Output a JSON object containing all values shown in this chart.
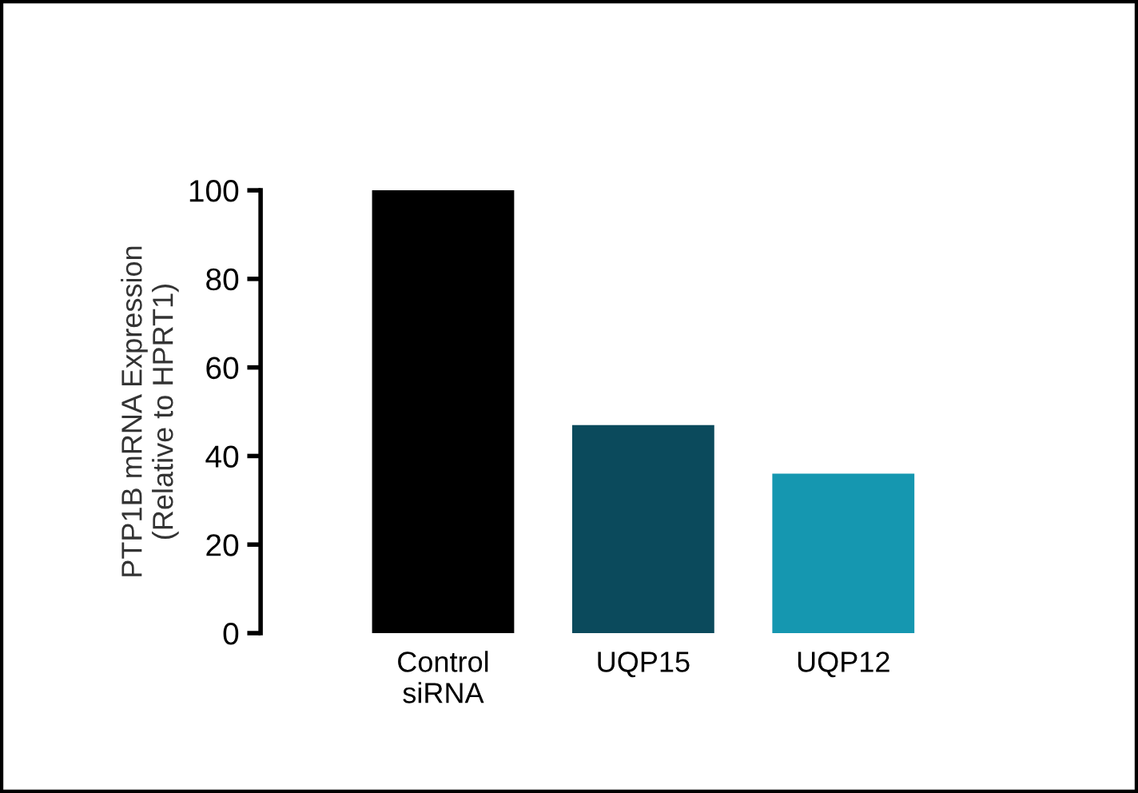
{
  "chart_data": {
    "type": "bar",
    "ylabel": "PTP1B mRNA Expression\n(Relative to HPRT1)",
    "categories": [
      "Control\nsiRNA",
      "UQP15",
      "UQP12"
    ],
    "values": [
      100,
      47,
      36
    ],
    "colors": [
      "#000000",
      "#0b4a5c",
      "#1597b0"
    ],
    "ylim": [
      0,
      100
    ],
    "yticks": [
      0,
      20,
      40,
      60,
      80,
      100
    ],
    "grid": false,
    "legend": false
  }
}
